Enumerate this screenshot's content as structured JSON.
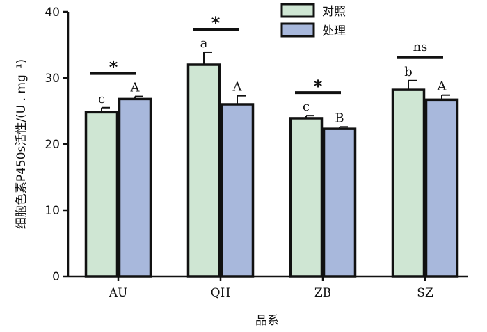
{
  "chart_data": {
    "type": "bar",
    "categories": [
      "AU",
      "QH",
      "ZB",
      "SZ"
    ],
    "series": [
      {
        "name": "对照",
        "color": "#cfe6d3",
        "values": [
          24.8,
          32.0,
          23.9,
          28.2
        ],
        "errors": [
          0.7,
          1.9,
          0.4,
          1.4
        ],
        "letters": [
          "c",
          "a",
          "c",
          "b"
        ]
      },
      {
        "name": "处理",
        "color": "#a8b8dc",
        "values": [
          26.8,
          26.0,
          22.3,
          26.7
        ],
        "errors": [
          0.4,
          1.3,
          0.3,
          0.7
        ],
        "letters": [
          "A",
          "A",
          "B",
          "A"
        ]
      }
    ],
    "significance": [
      "*",
      "*",
      "*",
      "ns"
    ],
    "ylabel": "细胞色素P450s活性/(U . mg⁻¹)",
    "xlabel": "品系",
    "ylim": [
      0,
      40
    ],
    "yticks": [
      0,
      10,
      20,
      30,
      40
    ],
    "grid": false,
    "legend_position": "top-center"
  }
}
